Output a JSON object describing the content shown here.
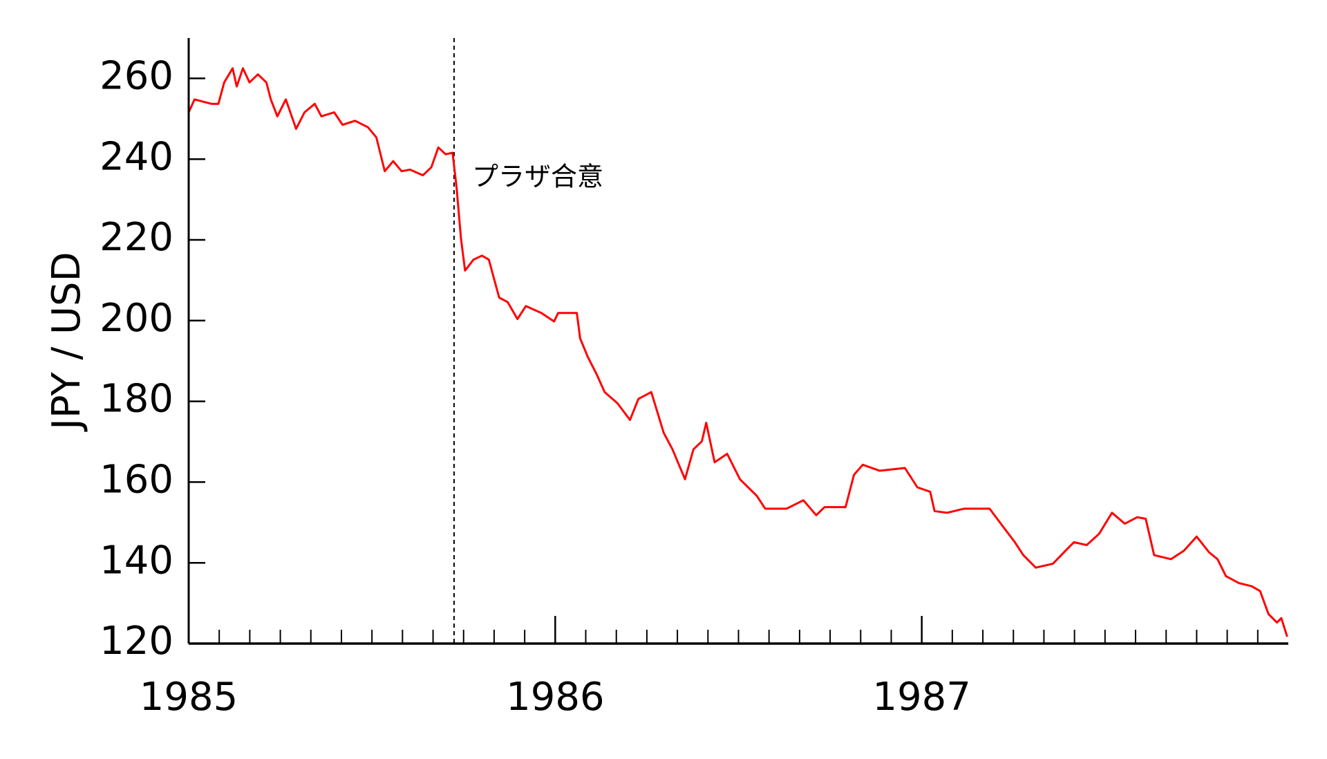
{
  "chart_data": {
    "type": "line",
    "ylabel": "JPY / USD",
    "xlim": [
      1985,
      1988
    ],
    "ylim": [
      120,
      270
    ],
    "xticks": [
      1985,
      1986,
      1987
    ],
    "xminorticks": [
      1985.0833,
      1985.1667,
      1985.25,
      1985.3333,
      1985.4167,
      1985.5,
      1985.5833,
      1985.6667,
      1985.75,
      1985.8333,
      1985.9167,
      1986.0833,
      1986.1667,
      1986.25,
      1986.3333,
      1986.4167,
      1986.5,
      1986.5833,
      1986.6667,
      1986.75,
      1986.8333,
      1986.9167,
      1987.0833,
      1987.1667,
      1987.25,
      1987.3333,
      1987.4167,
      1987.5,
      1987.5833,
      1987.6667,
      1987.75,
      1987.8333,
      1987.9167
    ],
    "yticks": [
      120,
      140,
      160,
      180,
      200,
      220,
      240,
      260
    ],
    "annotation": {
      "text": "プラザ合意",
      "x": 1985.724
    },
    "series": [
      {
        "color": "#ff0000",
        "x": [
          1985.0,
          1985.016,
          1985.062,
          1985.081,
          1985.097,
          1985.12,
          1985.131,
          1985.148,
          1985.166,
          1985.189,
          1985.212,
          1985.224,
          1985.242,
          1985.265,
          1985.293,
          1985.316,
          1985.344,
          1985.362,
          1985.397,
          1985.42,
          1985.454,
          1985.489,
          1985.512,
          1985.535,
          1985.558,
          1985.581,
          1985.604,
          1985.639,
          1985.662,
          1985.681,
          1985.701,
          1985.72,
          1985.731,
          1985.743,
          1985.754,
          1985.777,
          1985.8,
          1985.819,
          1985.847,
          1985.87,
          1985.897,
          1985.92,
          1985.962,
          1985.997,
          1986.008,
          1986.059,
          1986.068,
          1986.089,
          1986.112,
          1986.135,
          1986.17,
          1986.204,
          1986.227,
          1986.262,
          1986.296,
          1986.32,
          1986.354,
          1986.377,
          1986.4,
          1986.412,
          1986.435,
          1986.469,
          1986.504,
          1986.55,
          1986.573,
          1986.631,
          1986.677,
          1986.712,
          1986.735,
          1986.792,
          1986.815,
          1986.839,
          1986.885,
          1986.954,
          1986.988,
          1987.023,
          1987.035,
          1987.069,
          1987.115,
          1987.185,
          1987.219,
          1987.254,
          1987.277,
          1987.311,
          1987.358,
          1987.392,
          1987.415,
          1987.45,
          1987.484,
          1987.519,
          1987.554,
          1987.588,
          1987.611,
          1987.634,
          1987.68,
          1987.715,
          1987.75,
          1987.784,
          1987.807,
          1987.83,
          1987.865,
          1987.9,
          1987.923,
          1987.946,
          1987.969,
          1987.981,
          1987.997
        ],
        "values": [
          251.6,
          254.8,
          253.7,
          253.7,
          259,
          262.5,
          258,
          262.5,
          259,
          261,
          259,
          254.8,
          250.6,
          254.8,
          247.5,
          251.6,
          253.7,
          250.6,
          251.6,
          248.5,
          249.5,
          247.9,
          245.4,
          237,
          239.5,
          237,
          237.4,
          236,
          238,
          242.9,
          241.2,
          241.6,
          232.8,
          220.3,
          212.4,
          215.1,
          216.1,
          215.1,
          205.7,
          204.6,
          200.4,
          203.6,
          201.9,
          199.8,
          201.9,
          201.9,
          195.6,
          191,
          186.9,
          182.3,
          179.5,
          175.4,
          180.6,
          182.3,
          172.2,
          168.1,
          160.7,
          168.1,
          170.1,
          174.7,
          164.9,
          167,
          160.7,
          156.6,
          153.4,
          153.4,
          155.5,
          151.8,
          153.8,
          153.8,
          161.8,
          164.3,
          162.8,
          163.5,
          158.7,
          157.6,
          152.8,
          152.4,
          153.4,
          153.4,
          149.3,
          145.1,
          141.9,
          138.8,
          139.8,
          143,
          145.1,
          144.4,
          147.2,
          152.4,
          149.7,
          151.3,
          150.9,
          141.9,
          140.9,
          143,
          146.5,
          142.6,
          140.9,
          136.7,
          135,
          134.2,
          133,
          127.3,
          125.2,
          126.3,
          121.7
        ]
      }
    ]
  }
}
